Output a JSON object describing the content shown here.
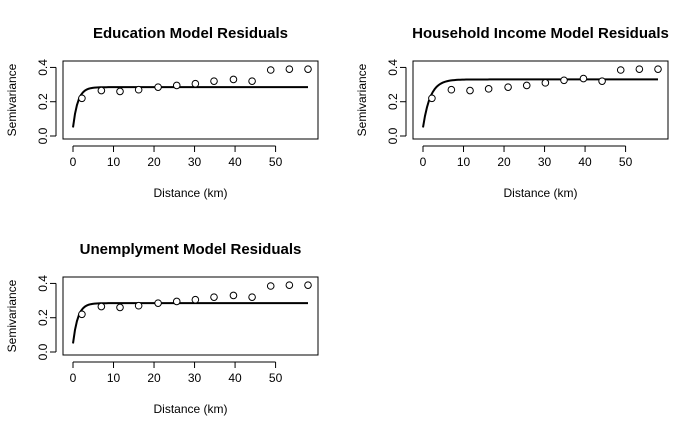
{
  "chart_data": [
    {
      "type": "scatter",
      "title": "Education Model Residuals",
      "xlabel": "Distance (km)",
      "ylabel": "Semivariance",
      "xlim": [
        0,
        58
      ],
      "ylim": [
        0,
        0.42
      ],
      "x_ticks": [
        0,
        10,
        20,
        30,
        40,
        50
      ],
      "y_ticks": [
        0.0,
        0.2,
        0.4
      ],
      "y_tick_labels": [
        "0.0",
        "0.2",
        "0.4"
      ],
      "points": {
        "x": [
          2.2,
          7.0,
          11.6,
          16.2,
          21.0,
          25.6,
          30.2,
          34.8,
          39.6,
          44.2,
          48.8,
          53.4,
          58.0
        ],
        "y": [
          0.22,
          0.265,
          0.26,
          0.27,
          0.285,
          0.295,
          0.305,
          0.32,
          0.33,
          0.32,
          0.385,
          0.39,
          0.39
        ]
      },
      "fit": {
        "model": "exponential",
        "nugget": 0.05,
        "sill": 0.285,
        "range": 1.2
      }
    },
    {
      "type": "scatter",
      "title": "Household Income Model Residuals",
      "xlabel": "Distance (km)",
      "ylabel": "Semivariance",
      "xlim": [
        0,
        58
      ],
      "ylim": [
        0,
        0.42
      ],
      "x_ticks": [
        0,
        10,
        20,
        30,
        40,
        50
      ],
      "y_ticks": [
        0.0,
        0.2,
        0.4
      ],
      "y_tick_labels": [
        "0.0",
        "0.2",
        "0.4"
      ],
      "points": {
        "x": [
          2.2,
          7.0,
          11.6,
          16.2,
          21.0,
          25.6,
          30.2,
          34.8,
          39.6,
          44.2,
          48.8,
          53.4,
          58.0
        ],
        "y": [
          0.22,
          0.27,
          0.265,
          0.275,
          0.285,
          0.295,
          0.31,
          0.325,
          0.335,
          0.32,
          0.385,
          0.39,
          0.39
        ]
      },
      "fit": {
        "model": "exponential",
        "nugget": 0.05,
        "sill": 0.33,
        "range": 1.8
      }
    },
    {
      "type": "scatter",
      "title": "Unemplyment Model Residuals",
      "xlabel": "Distance (km)",
      "ylabel": "Semivariance",
      "xlim": [
        0,
        58
      ],
      "ylim": [
        0,
        0.42
      ],
      "x_ticks": [
        0,
        10,
        20,
        30,
        40,
        50
      ],
      "y_ticks": [
        0.0,
        0.2,
        0.4
      ],
      "y_tick_labels": [
        "0.0",
        "0.2",
        "0.4"
      ],
      "points": {
        "x": [
          2.2,
          7.0,
          11.6,
          16.2,
          21.0,
          25.6,
          30.2,
          34.8,
          39.6,
          44.2,
          48.8,
          53.4,
          58.0
        ],
        "y": [
          0.22,
          0.265,
          0.26,
          0.27,
          0.285,
          0.295,
          0.305,
          0.32,
          0.33,
          0.32,
          0.385,
          0.39,
          0.39
        ]
      },
      "fit": {
        "model": "exponential",
        "nugget": 0.05,
        "sill": 0.285,
        "range": 1.2
      }
    }
  ]
}
